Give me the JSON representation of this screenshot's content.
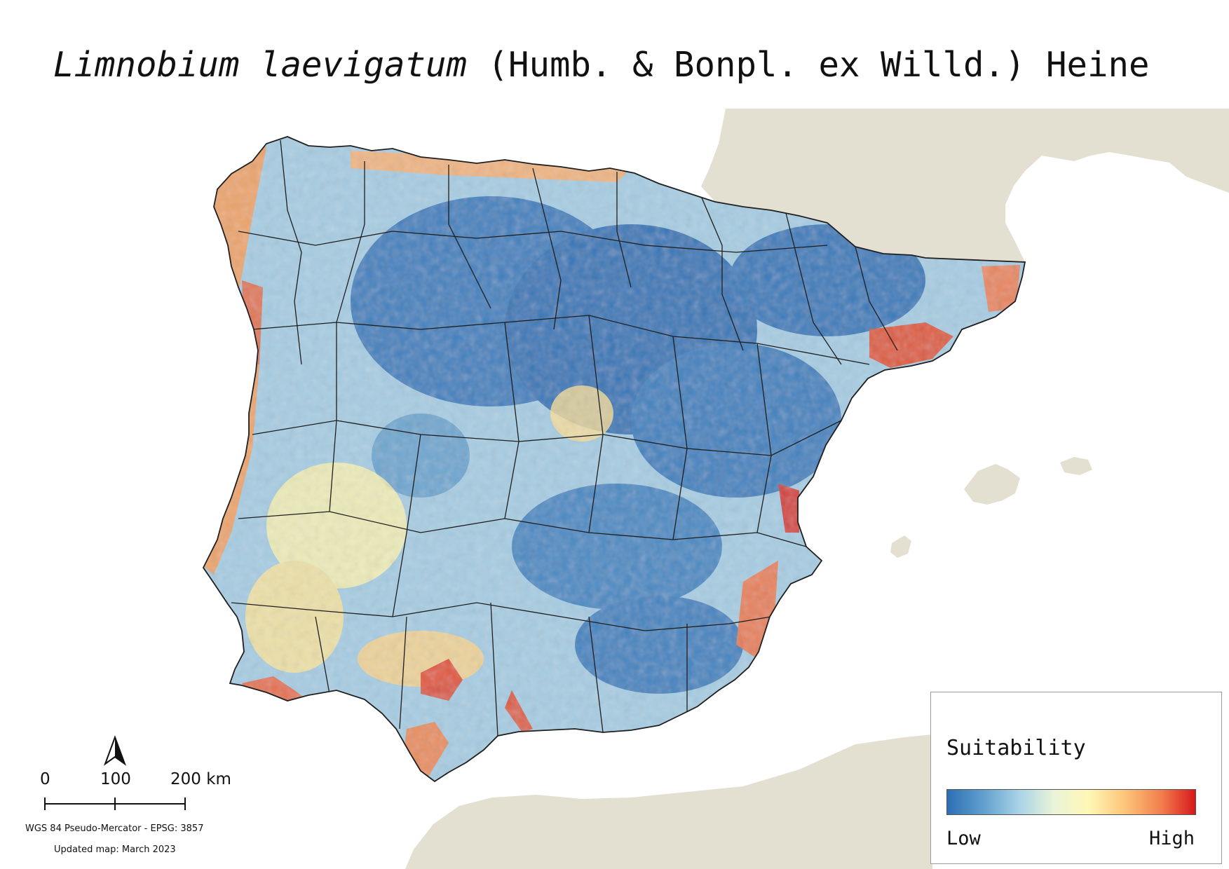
{
  "title": {
    "species": "Limnobium laevigatum",
    "authority": " (Humb. & Bonpl. ex Willd.) Heine"
  },
  "legend": {
    "title": "Suitability",
    "low_label": "Low",
    "high_label": "High",
    "ramp_colors": [
      "#2c6fb4",
      "#5e9dcc",
      "#a9d3e6",
      "#eaf4d8",
      "#fff7b6",
      "#fdc77c",
      "#f2804e",
      "#d7191c"
    ]
  },
  "scale_bar": {
    "ticks": [
      "0",
      "100",
      "200 km"
    ]
  },
  "projection_note": "WGS 84 Pseudo-Mercator  - EPSG: 3857",
  "update_note": "Updated map: March 2023",
  "north_arrow_icon": "north-arrow-icon",
  "colors": {
    "land_background": "#e3dfd1",
    "border_lines": "#1f1f1f",
    "low": "#2c6fb4",
    "high": "#d7191c"
  }
}
